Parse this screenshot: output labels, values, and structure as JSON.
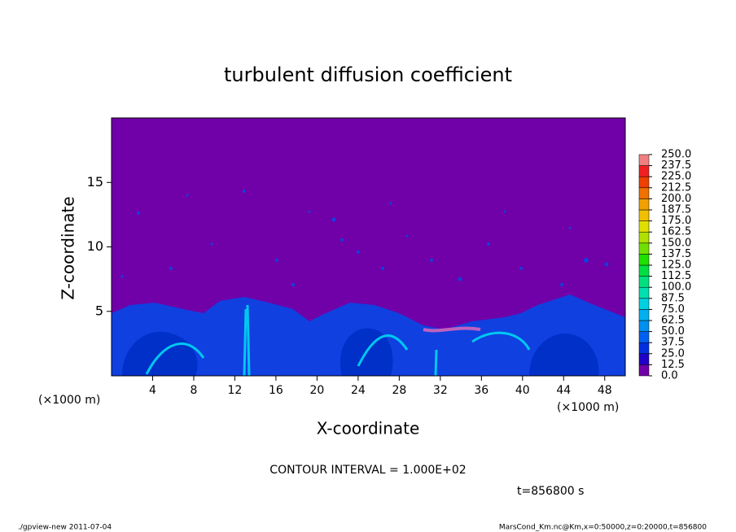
{
  "chart_data": {
    "type": "contour",
    "title": "turbulent diffusion coefficient",
    "xlabel": "X-coordinate",
    "ylabel": "Z-coordinate",
    "x_unit_label": "(×1000 m)",
    "y_unit_label": "(×1000 m)",
    "xlim": [
      0,
      50
    ],
    "xticks": [
      4,
      8,
      12,
      16,
      20,
      24,
      28,
      32,
      36,
      40,
      44,
      48
    ],
    "ylim": [
      0,
      20
    ],
    "yticks": [
      5,
      10,
      15
    ],
    "background_color": "#7000a8",
    "colorbar": {
      "levels": [
        {
          "value": 0,
          "label": "0.0"
        },
        {
          "value": 12.5,
          "label": "12.5"
        },
        {
          "value": 25,
          "label": "25.0"
        },
        {
          "value": 37.5,
          "label": "37.5"
        },
        {
          "value": 50,
          "label": "50.0"
        },
        {
          "value": 62.5,
          "label": "62.5"
        },
        {
          "value": 75,
          "label": "75.0"
        },
        {
          "value": 87.5,
          "label": "87.5"
        },
        {
          "value": 100,
          "label": "100.0"
        },
        {
          "value": 112.5,
          "label": "112.5"
        },
        {
          "value": 125,
          "label": "125.0"
        },
        {
          "value": 137.5,
          "label": "137.5"
        },
        {
          "value": 150,
          "label": "150.0"
        },
        {
          "value": 162.5,
          "label": "162.5"
        },
        {
          "value": 175,
          "label": "175.0"
        },
        {
          "value": 187.5,
          "label": "187.5"
        },
        {
          "value": 200,
          "label": "200.0"
        },
        {
          "value": 212.5,
          "label": "212.5"
        },
        {
          "value": 225,
          "label": "225.0"
        },
        {
          "value": 237.5,
          "label": "237.5"
        },
        {
          "value": 250,
          "label": "250.0"
        }
      ],
      "colors": [
        "#7000a8",
        "#2000c8",
        "#0030e0",
        "#0060f0",
        "#0090f0",
        "#00b0f0",
        "#00d0e0",
        "#00e0b0",
        "#00e080",
        "#00e040",
        "#20e000",
        "#70e000",
        "#b0e000",
        "#e0e000",
        "#f0c000",
        "#f0a000",
        "#f07000",
        "#f04000",
        "#f02020",
        "#f08080"
      ]
    },
    "contour_interval_note": "CONTOUR INTERVAL = 1.000E+02",
    "time_note": "t=856800 s",
    "footer_left": "./gpview-new  2011-07-04",
    "footer_right": "MarsCond_Km.nc@Km,x=0:50000,z=0:20000,t=856800"
  }
}
